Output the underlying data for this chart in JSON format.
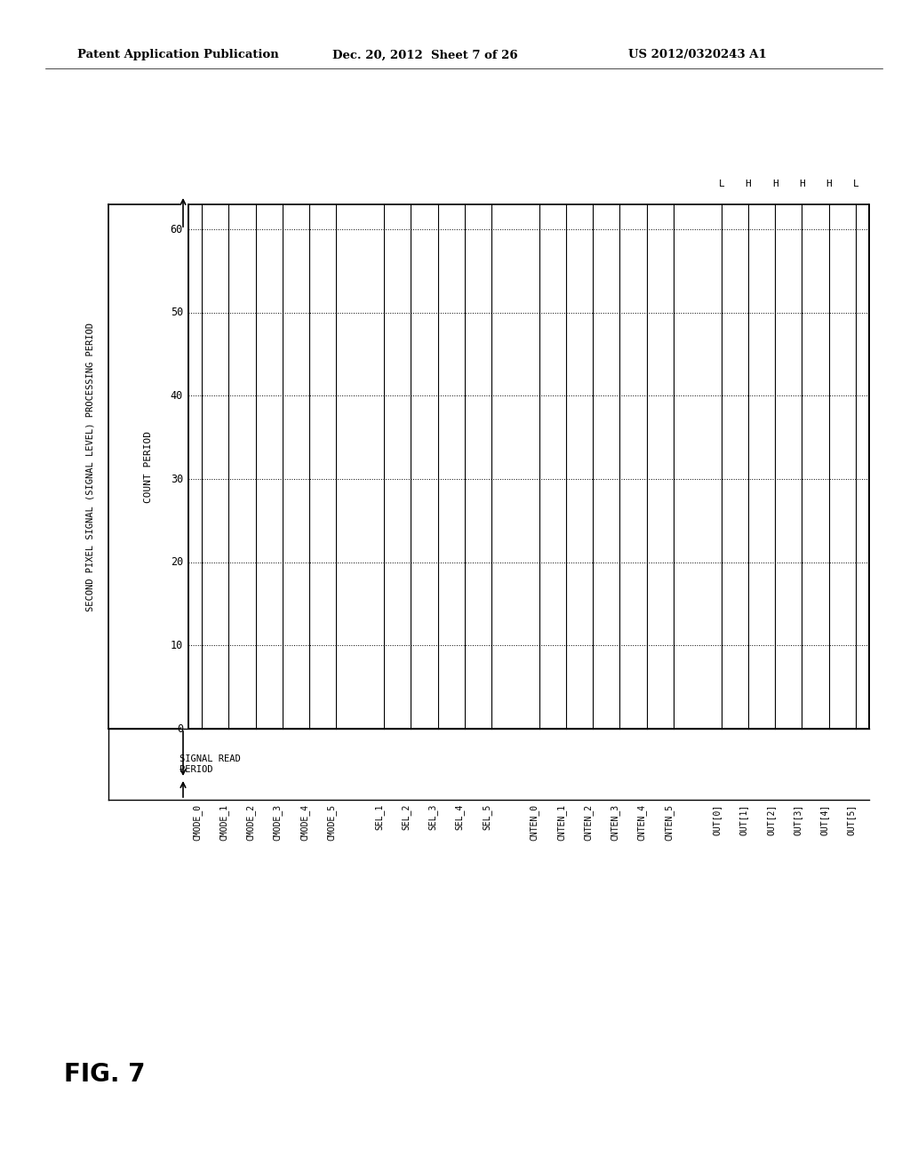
{
  "header_left": "Patent Application Publication",
  "header_mid": "Dec. 20, 2012  Sheet 7 of 26",
  "header_right": "US 2012/0320243 A1",
  "fig_label": "FIG. 7",
  "outer_label_vertical": "SECOND PIXEL SIGNAL (SIGNAL LEVEL) PROCESSING PERIOD",
  "count_period_label": "COUNT PERIOD",
  "signal_read_label": "SIGNAL READ\nPERIOD",
  "y_ticks": [
    0,
    10,
    20,
    30,
    40,
    50,
    60
  ],
  "x_signals": [
    "CMODE_0",
    "CMODE_1",
    "CMODE_2",
    "CMODE_3",
    "CMODE_4",
    "CMODE_5",
    "SEL_1",
    "SEL_2",
    "SEL_3",
    "SEL_4",
    "SEL_5",
    "CNTEN_0",
    "CNTEN_1",
    "CNTEN_2",
    "CNTEN_3",
    "CNTEN_4",
    "CNTEN_5",
    "OUT[0]",
    "OUT[1]",
    "OUT[2]",
    "OUT[3]",
    "OUT[4]",
    "OUT[5]"
  ],
  "group_sizes": [
    6,
    5,
    6,
    6
  ],
  "h_labels": [
    "L",
    "H",
    "H",
    "H",
    "H",
    "L"
  ],
  "bg_color": "#ffffff",
  "line_color": "#000000",
  "dot_line_color": "#555555"
}
